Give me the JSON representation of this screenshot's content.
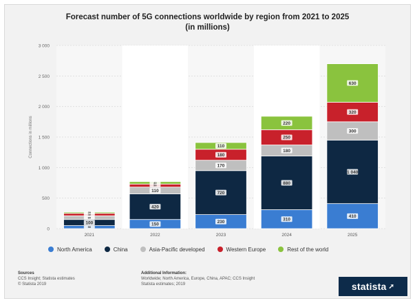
{
  "title_line1": "Forecast number of 5G connections worldwide by region from 2021 to 2025",
  "title_line2": "(in millions)",
  "legend_items": [
    {
      "label": "North America",
      "color": "#3a7dd2"
    },
    {
      "label": "China",
      "color": "#0e2843"
    },
    {
      "label": "Asia-Pacific developed",
      "color": "#bfbfbf"
    },
    {
      "label": "Western Europe",
      "color": "#c8212b"
    },
    {
      "label": "Rest of the world",
      "color": "#8ac33e"
    }
  ],
  "footer": {
    "sources_head": "Sources",
    "sources_line1": "CCS Insight; Statista estimates",
    "sources_line2": "© Statista 2019",
    "info_head": "Additional Information:",
    "info_line1": "Worldwide; North America, Europe, China, APAC; CCS Insight",
    "info_line2": "Statista estimates; 2019"
  },
  "brand": "statista",
  "chart_data": {
    "type": "bar",
    "stacked": true,
    "title": "Forecast number of 5G connections worldwide by region from 2021 to 2025 (in millions)",
    "ylabel": "Connections in millions",
    "ylim": [
      0,
      3000
    ],
    "yticks": [
      0,
      500,
      1000,
      1500,
      2000,
      2500,
      3000
    ],
    "ytick_labels": [
      "0",
      "500",
      "1 000",
      "1 500",
      "2 000",
      "2 500",
      "3 000"
    ],
    "categories": [
      "2021",
      "2022",
      "2023",
      "2024",
      "2025"
    ],
    "series": [
      {
        "name": "North America",
        "color": "#3a7dd2",
        "values": [
          50,
          150,
          230,
          310,
          410
        ],
        "labels": [
          "50",
          "150",
          "230",
          "310",
          "410"
        ]
      },
      {
        "name": "China",
        "color": "#0e2843",
        "values": [
          100,
          420,
          720,
          880,
          1040
        ],
        "labels": [
          "100",
          "420",
          "720",
          "880",
          "1 040"
        ]
      },
      {
        "name": "Asia-Pacific developed",
        "color": "#bfbfbf",
        "values": [
          60,
          110,
          170,
          180,
          300
        ],
        "labels": [
          "60",
          "110",
          "170",
          "180",
          "300"
        ]
      },
      {
        "name": "Western Europe",
        "color": "#c8212b",
        "values": [
          40,
          50,
          180,
          250,
          320
        ],
        "labels": [
          "40",
          "50",
          "180",
          "250",
          "320"
        ]
      },
      {
        "name": "Rest of the world",
        "color": "#8ac33e",
        "values": [
          20,
          40,
          110,
          220,
          630
        ],
        "labels": [
          "20",
          "40",
          "110",
          "220",
          "630"
        ]
      }
    ],
    "grid": true,
    "legend_position": "bottom"
  }
}
